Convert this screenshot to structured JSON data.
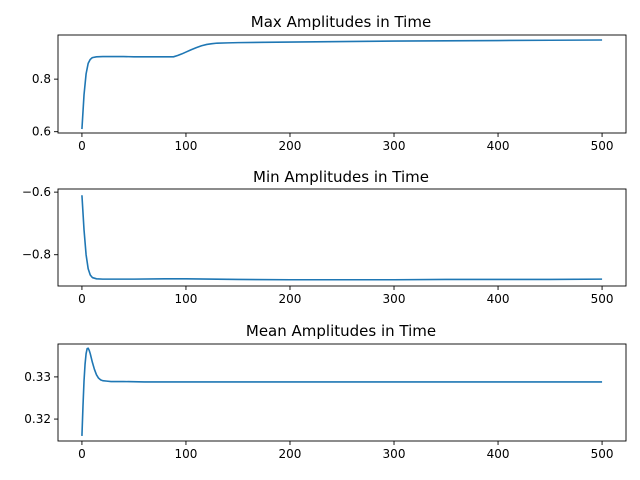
{
  "colors": {
    "line": "#1f77b4"
  },
  "chart_data": [
    {
      "type": "line",
      "title": "Max Amplitudes in Time",
      "xlabel": "",
      "ylabel": "",
      "xlim": [
        -23,
        523
      ],
      "ylim": [
        0.595,
        0.968
      ],
      "xticks": [
        0,
        100,
        200,
        300,
        400,
        500
      ],
      "yticks": [
        0.6,
        0.8
      ],
      "xtick_labels": [
        "0",
        "100",
        "200",
        "300",
        "400",
        "500"
      ],
      "ytick_labels": [
        "0.6",
        "0.8"
      ],
      "grid": false,
      "series": [
        {
          "x": [
            0,
            2,
            4,
            6,
            8,
            10,
            14,
            20,
            30,
            40,
            50,
            60,
            70,
            80,
            88,
            92,
            96,
            100,
            105,
            110,
            115,
            120,
            125,
            130,
            140,
            150,
            175,
            200,
            250,
            300,
            350,
            400,
            450,
            500
          ],
          "y": [
            0.61,
            0.74,
            0.82,
            0.86,
            0.875,
            0.882,
            0.885,
            0.886,
            0.886,
            0.886,
            0.885,
            0.885,
            0.885,
            0.885,
            0.885,
            0.89,
            0.896,
            0.903,
            0.912,
            0.92,
            0.927,
            0.932,
            0.935,
            0.937,
            0.938,
            0.939,
            0.94,
            0.941,
            0.943,
            0.945,
            0.946,
            0.947,
            0.948,
            0.949
          ]
        }
      ]
    },
    {
      "type": "line",
      "title": "Min Amplitudes in Time",
      "xlabel": "",
      "ylabel": "",
      "xlim": [
        -23,
        523
      ],
      "ylim": [
        -0.9,
        -0.59
      ],
      "xticks": [
        0,
        100,
        200,
        300,
        400,
        500
      ],
      "yticks": [
        -0.6,
        -0.8
      ],
      "xtick_labels": [
        "0",
        "100",
        "200",
        "300",
        "400",
        "500"
      ],
      "ytick_labels": [
        "−0.6",
        "−0.8"
      ],
      "grid": false,
      "series": [
        {
          "x": [
            0,
            2,
            4,
            6,
            8,
            10,
            14,
            20,
            30,
            50,
            80,
            100,
            150,
            200,
            250,
            300,
            350,
            400,
            450,
            500
          ],
          "y": [
            -0.61,
            -0.72,
            -0.8,
            -0.845,
            -0.865,
            -0.873,
            -0.877,
            -0.878,
            -0.878,
            -0.878,
            -0.877,
            -0.877,
            -0.879,
            -0.88,
            -0.88,
            -0.88,
            -0.879,
            -0.879,
            -0.879,
            -0.878
          ]
        }
      ]
    },
    {
      "type": "line",
      "title": "Mean Amplitudes in Time",
      "xlabel": "",
      "ylabel": "",
      "xlim": [
        -23,
        523
      ],
      "ylim": [
        0.3148,
        0.3378
      ],
      "xticks": [
        0,
        100,
        200,
        300,
        400,
        500
      ],
      "yticks": [
        0.32,
        0.33
      ],
      "xtick_labels": [
        "0",
        "100",
        "200",
        "300",
        "400",
        "500"
      ],
      "ytick_labels": [
        "0.32",
        "0.33"
      ],
      "grid": false,
      "series": [
        {
          "x": [
            0,
            1,
            2,
            3,
            4,
            5,
            6,
            7,
            8,
            9,
            10,
            12,
            14,
            16,
            18,
            20,
            24,
            28,
            32,
            40,
            60,
            100,
            200,
            300,
            400,
            500
          ],
          "y": [
            0.316,
            0.323,
            0.329,
            0.333,
            0.3355,
            0.3367,
            0.3368,
            0.3363,
            0.3355,
            0.3345,
            0.3335,
            0.3318,
            0.3305,
            0.3297,
            0.3293,
            0.3291,
            0.329,
            0.3289,
            0.3289,
            0.3289,
            0.3288,
            0.3288,
            0.3288,
            0.3288,
            0.3288,
            0.3288
          ]
        }
      ]
    }
  ]
}
